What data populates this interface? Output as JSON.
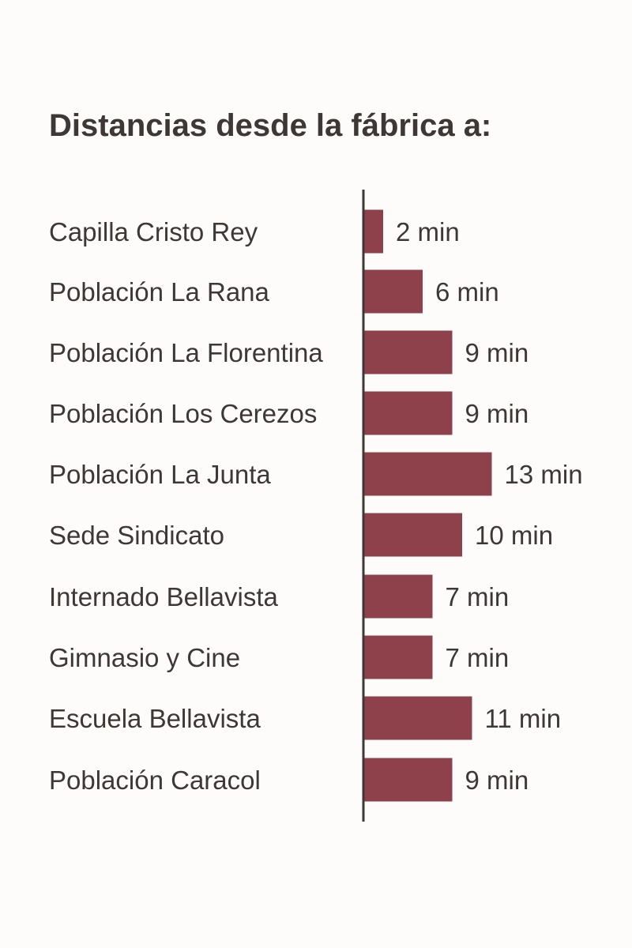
{
  "chart_data": {
    "type": "bar",
    "orientation": "horizontal",
    "title": "Distancias desde la fábrica a:",
    "categories": [
      "Capilla Cristo Rey",
      "Población La Rana",
      "Población La Florentina",
      "Población Los Cerezos",
      "Población La Junta",
      "Sede Sindicato",
      "Internado Bellavista",
      "Gimnasio y Cine",
      "Escuela Bellavista",
      "Población Caracol"
    ],
    "values": [
      2,
      6,
      9,
      9,
      13,
      10,
      7,
      7,
      11,
      9
    ],
    "value_labels": [
      "2 min",
      "6 min",
      "9 min",
      "9 min",
      "13 min",
      "10 min",
      "7 min",
      "7 min",
      "11 min",
      "9 min"
    ],
    "unit": "min",
    "xlim": [
      0,
      13
    ],
    "grid": false,
    "legend": "none",
    "bar_color": "#8e414b",
    "axis_color": "#3d3836"
  }
}
